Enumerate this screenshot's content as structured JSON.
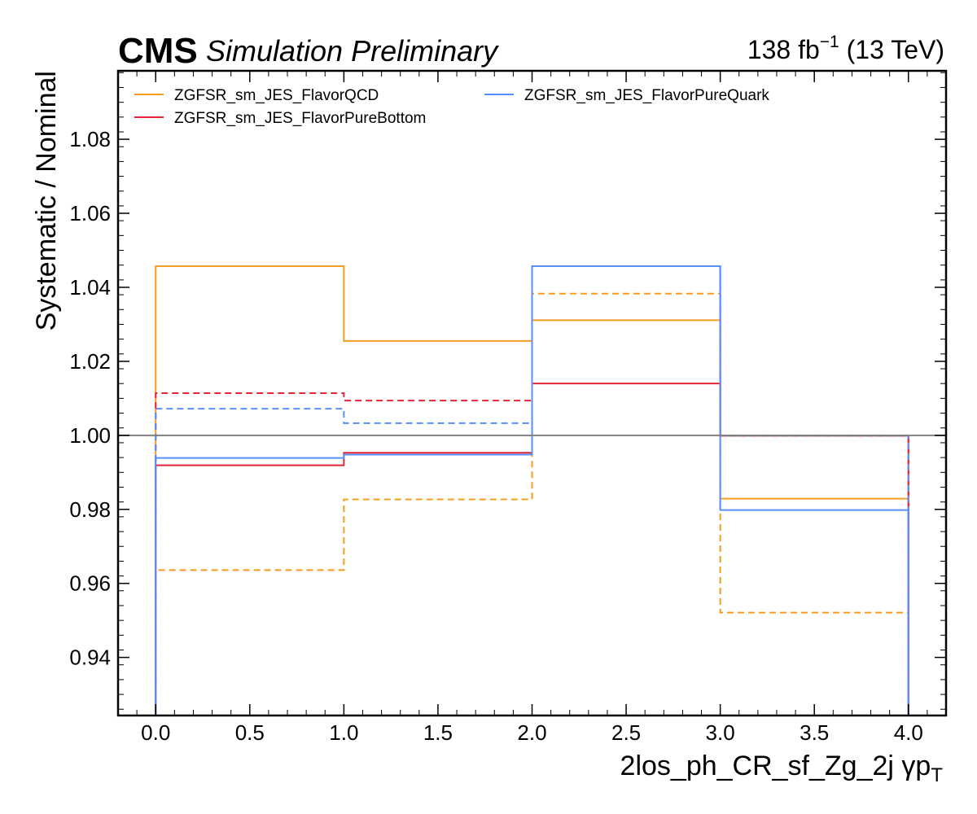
{
  "header": {
    "experiment": "CMS",
    "status": "Simulation Preliminary",
    "lumi_value": "138 fb",
    "lumi_exponent": "−1",
    "energy": " (13 TeV)"
  },
  "chart_data": {
    "type": "line",
    "style": "step-histogram",
    "xlabel": "2los_ph_CR_sf_Zg_2j   γp",
    "xlabel_subscript": "T",
    "ylabel": "Systematic / Nominal",
    "xlim": [
      -0.2,
      4.2
    ],
    "ylim": [
      0.9243,
      1.0985
    ],
    "x_ticks": [
      0.0,
      0.5,
      1.0,
      1.5,
      2.0,
      2.5,
      3.0,
      3.5,
      4.0
    ],
    "x_tick_labels": [
      "0.0",
      "0.5",
      "1.0",
      "1.5",
      "2.0",
      "2.5",
      "3.0",
      "3.5",
      "4.0"
    ],
    "y_ticks": [
      0.94,
      0.96,
      0.98,
      1.0,
      1.02,
      1.04,
      1.06,
      1.08
    ],
    "y_tick_labels": [
      "0.94",
      "0.96",
      "0.98",
      "1.00",
      "1.02",
      "1.04",
      "1.06",
      "1.08"
    ],
    "bin_edges": [
      0,
      1,
      2,
      3,
      4
    ],
    "reference_line": 1.0,
    "legend_position": "top-left, two columns",
    "series": [
      {
        "name": "ZGFSR_sm_JES_FlavorQCD",
        "variation": "up",
        "color": "#f89c20",
        "dashed": false,
        "values": [
          1.0457,
          1.0255,
          1.0311,
          0.9829
        ]
      },
      {
        "name": "ZGFSR_sm_JES_FlavorQCD",
        "variation": "down",
        "color": "#f89c20",
        "dashed": true,
        "values": [
          0.9636,
          0.9827,
          1.0383,
          0.9521
        ]
      },
      {
        "name": "ZGFSR_sm_JES_FlavorPureBottom",
        "variation": "up",
        "color": "#e42536",
        "dashed": false,
        "values": [
          0.9919,
          0.9953,
          1.014,
          0.9999
        ]
      },
      {
        "name": "ZGFSR_sm_JES_FlavorPureBottom",
        "variation": "down",
        "color": "#e42536",
        "dashed": true,
        "values": [
          1.0114,
          1.0094,
          1.0457,
          0.9999
        ]
      },
      {
        "name": "ZGFSR_sm_JES_FlavorPureQuark",
        "variation": "up",
        "color": "#5790fc",
        "dashed": false,
        "values": [
          0.9939,
          0.9948,
          1.0457,
          0.9798
        ]
      },
      {
        "name": "ZGFSR_sm_JES_FlavorPureQuark",
        "variation": "down",
        "color": "#5790fc",
        "dashed": true,
        "values": [
          1.0072,
          1.0033,
          1.0457,
          0.9999
        ]
      }
    ],
    "legend": [
      {
        "label": "ZGFSR_sm_JES_FlavorQCD",
        "color": "#f89c20"
      },
      {
        "label": "ZGFSR_sm_JES_FlavorPureBottom",
        "color": "#e42536"
      },
      {
        "label": "ZGFSR_sm_JES_FlavorPureQuark",
        "color": "#5790fc"
      }
    ]
  }
}
